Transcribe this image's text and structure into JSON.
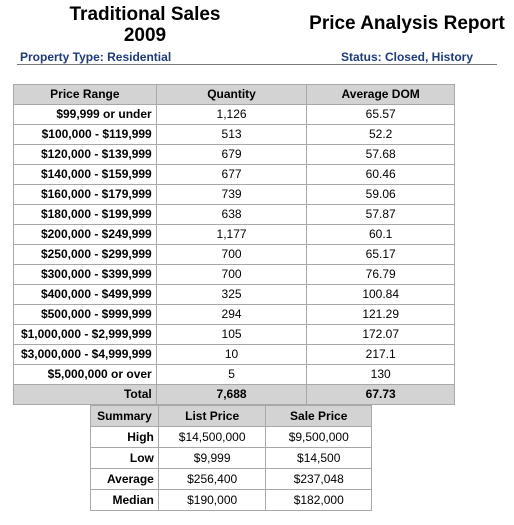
{
  "header": {
    "title_line1": "Traditional Sales",
    "title_line2": "2009",
    "report_title": "Price Analysis Report",
    "property_type": "Property Type: Residential",
    "status": "Status: Closed, History"
  },
  "price_table": {
    "columns": [
      "Price Range",
      "Quantity",
      "Average DOM"
    ],
    "rows": [
      {
        "range": "$99,999 or under",
        "quantity": "1,126",
        "dom": "65.57"
      },
      {
        "range": "$100,000 - $119,999",
        "quantity": "513",
        "dom": "52.2"
      },
      {
        "range": "$120,000 - $139,999",
        "quantity": "679",
        "dom": "57.68"
      },
      {
        "range": "$140,000 - $159,999",
        "quantity": "677",
        "dom": "60.46"
      },
      {
        "range": "$160,000 - $179,999",
        "quantity": "739",
        "dom": "59.06"
      },
      {
        "range": "$180,000 - $199,999",
        "quantity": "638",
        "dom": "57.87"
      },
      {
        "range": "$200,000 - $249,999",
        "quantity": "1,177",
        "dom": "60.1"
      },
      {
        "range": "$250,000 - $299,999",
        "quantity": "700",
        "dom": "65.17"
      },
      {
        "range": "$300,000 - $399,999",
        "quantity": "700",
        "dom": "76.79"
      },
      {
        "range": "$400,000 - $499,999",
        "quantity": "325",
        "dom": "100.84"
      },
      {
        "range": "$500,000 - $999,999",
        "quantity": "294",
        "dom": "121.29"
      },
      {
        "range": "$1,000,000 - $2,999,999",
        "quantity": "105",
        "dom": "172.07"
      },
      {
        "range": "$3,000,000 - $4,999,999",
        "quantity": "10",
        "dom": "217.1"
      },
      {
        "range": "$5,000,000 or over",
        "quantity": "5",
        "dom": "130"
      }
    ],
    "total": {
      "label": "Total",
      "quantity": "7,688",
      "dom": "67.73"
    }
  },
  "summary_table": {
    "columns": [
      "Summary",
      "List Price",
      "Sale Price"
    ],
    "rows": [
      {
        "label": "High",
        "list": "$14,500,000",
        "sale": "$9,500,000"
      },
      {
        "label": "Low",
        "list": "$9,999",
        "sale": "$14,500"
      },
      {
        "label": "Average",
        "list": "$256,400",
        "sale": "$237,048"
      },
      {
        "label": "Median",
        "list": "$190,000",
        "sale": "$182,000"
      }
    ]
  }
}
